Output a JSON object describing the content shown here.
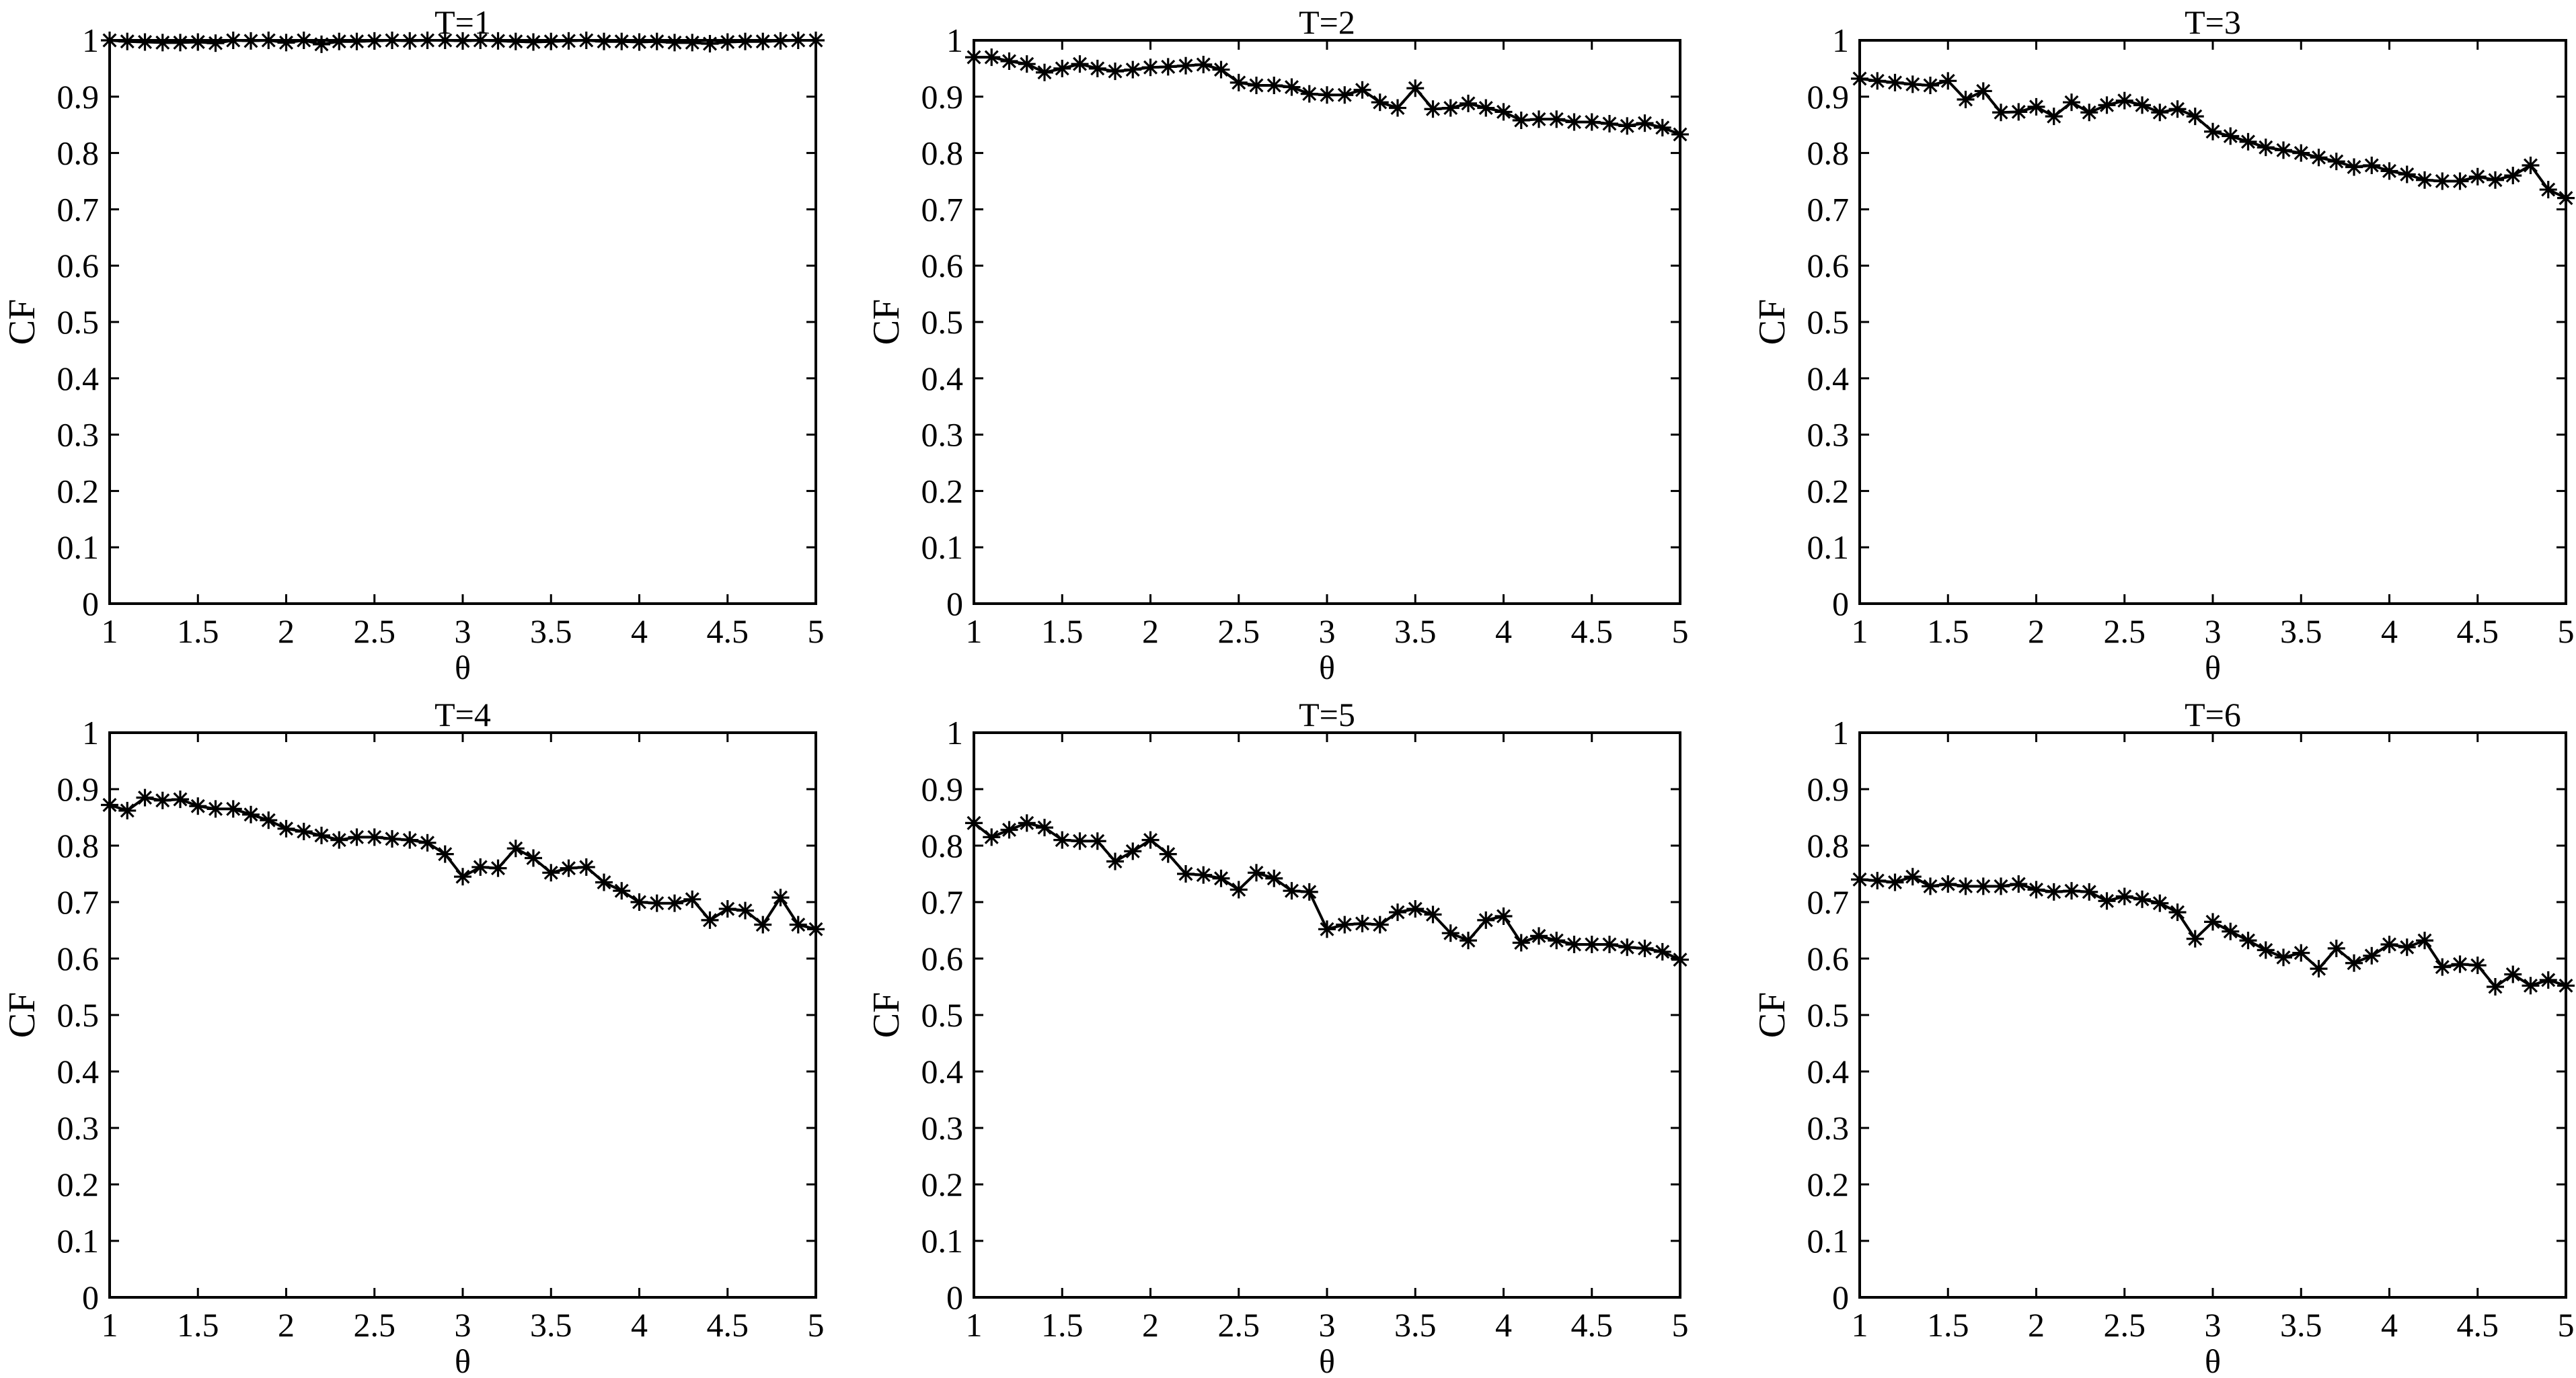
{
  "chart_data": [
    {
      "type": "line",
      "title": "T=1",
      "xlabel": "θ",
      "ylabel": "CF",
      "xlim": [
        1,
        5
      ],
      "ylim": [
        0,
        1
      ],
      "xticks": [
        "1",
        "1.5",
        "2",
        "2.5",
        "3",
        "3.5",
        "4",
        "4.5",
        "5"
      ],
      "yticks": [
        "0",
        "0.1",
        "0.2",
        "0.3",
        "0.4",
        "0.5",
        "0.6",
        "0.7",
        "0.8",
        "0.9",
        "1"
      ],
      "grid": false,
      "marker": "asterisk",
      "x": [
        1.0,
        1.1,
        1.2,
        1.3,
        1.4,
        1.5,
        1.6,
        1.7,
        1.8,
        1.9,
        2.0,
        2.1,
        2.2,
        2.3,
        2.4,
        2.5,
        2.6,
        2.7,
        2.8,
        2.9,
        3.0,
        3.1,
        3.2,
        3.3,
        3.4,
        3.5,
        3.6,
        3.7,
        3.8,
        3.9,
        4.0,
        4.1,
        4.2,
        4.3,
        4.4,
        4.5,
        4.6,
        4.7,
        4.8,
        4.9,
        5.0
      ],
      "values": [
        1.0,
        0.998,
        0.997,
        0.996,
        0.996,
        0.997,
        0.995,
        1.0,
        0.999,
        1.0,
        0.996,
        1.0,
        0.993,
        0.998,
        0.998,
        0.999,
        1.0,
        0.999,
        1.0,
        1.0,
        0.999,
        1.0,
        0.999,
        0.998,
        0.997,
        0.998,
        0.999,
        1.0,
        0.998,
        0.998,
        0.997,
        0.998,
        0.996,
        0.996,
        0.994,
        0.997,
        0.998,
        0.998,
        0.999,
        1.0,
        1.0
      ]
    },
    {
      "type": "line",
      "title": "T=2",
      "xlabel": "θ",
      "ylabel": "CF",
      "xlim": [
        1,
        5
      ],
      "ylim": [
        0,
        1
      ],
      "xticks": [
        "1",
        "1.5",
        "2",
        "2.5",
        "3",
        "3.5",
        "4",
        "4.5",
        "5"
      ],
      "yticks": [
        "0",
        "0.1",
        "0.2",
        "0.3",
        "0.4",
        "0.5",
        "0.6",
        "0.7",
        "0.8",
        "0.9",
        "1"
      ],
      "grid": false,
      "marker": "asterisk",
      "x": [
        1.0,
        1.1,
        1.2,
        1.3,
        1.4,
        1.5,
        1.6,
        1.7,
        1.8,
        1.9,
        2.0,
        2.1,
        2.2,
        2.3,
        2.4,
        2.5,
        2.6,
        2.7,
        2.8,
        2.9,
        3.0,
        3.1,
        3.2,
        3.3,
        3.4,
        3.5,
        3.6,
        3.7,
        3.8,
        3.9,
        4.0,
        4.1,
        4.2,
        4.3,
        4.4,
        4.5,
        4.6,
        4.7,
        4.8,
        4.9,
        5.0
      ],
      "values": [
        0.97,
        0.97,
        0.963,
        0.958,
        0.943,
        0.95,
        0.958,
        0.95,
        0.945,
        0.948,
        0.952,
        0.953,
        0.955,
        0.957,
        0.948,
        0.925,
        0.92,
        0.92,
        0.917,
        0.905,
        0.903,
        0.903,
        0.912,
        0.89,
        0.88,
        0.915,
        0.878,
        0.88,
        0.888,
        0.88,
        0.873,
        0.858,
        0.86,
        0.86,
        0.855,
        0.855,
        0.852,
        0.848,
        0.853,
        0.845,
        0.833
      ]
    },
    {
      "type": "line",
      "title": "T=3",
      "xlabel": "θ",
      "ylabel": "CF",
      "xlim": [
        1,
        5
      ],
      "ylim": [
        0,
        1
      ],
      "xticks": [
        "1",
        "1.5",
        "2",
        "2.5",
        "3",
        "3.5",
        "4",
        "4.5",
        "5"
      ],
      "yticks": [
        "0",
        "0.1",
        "0.2",
        "0.3",
        "0.4",
        "0.5",
        "0.6",
        "0.7",
        "0.8",
        "0.9",
        "1"
      ],
      "grid": false,
      "marker": "asterisk",
      "x": [
        1.0,
        1.1,
        1.2,
        1.3,
        1.4,
        1.5,
        1.6,
        1.7,
        1.8,
        1.9,
        2.0,
        2.1,
        2.2,
        2.3,
        2.4,
        2.5,
        2.6,
        2.7,
        2.8,
        2.9,
        3.0,
        3.1,
        3.2,
        3.3,
        3.4,
        3.5,
        3.6,
        3.7,
        3.8,
        3.9,
        4.0,
        4.1,
        4.2,
        4.3,
        4.4,
        4.5,
        4.6,
        4.7,
        4.8,
        4.9,
        5.0
      ],
      "values": [
        0.932,
        0.928,
        0.925,
        0.922,
        0.92,
        0.928,
        0.895,
        0.91,
        0.872,
        0.873,
        0.882,
        0.865,
        0.89,
        0.872,
        0.885,
        0.893,
        0.885,
        0.872,
        0.878,
        0.865,
        0.838,
        0.83,
        0.82,
        0.81,
        0.805,
        0.8,
        0.792,
        0.785,
        0.775,
        0.778,
        0.768,
        0.762,
        0.752,
        0.75,
        0.75,
        0.758,
        0.752,
        0.76,
        0.778,
        0.735,
        0.72
      ]
    },
    {
      "type": "line",
      "title": "T=4",
      "xlabel": "θ",
      "ylabel": "CF",
      "xlim": [
        1,
        5
      ],
      "ylim": [
        0,
        1
      ],
      "xticks": [
        "1",
        "1.5",
        "2",
        "2.5",
        "3",
        "3.5",
        "4",
        "4.5",
        "5"
      ],
      "yticks": [
        "0",
        "0.1",
        "0.2",
        "0.3",
        "0.4",
        "0.5",
        "0.6",
        "0.7",
        "0.8",
        "0.9",
        "1"
      ],
      "grid": false,
      "marker": "asterisk",
      "x": [
        1.0,
        1.1,
        1.2,
        1.3,
        1.4,
        1.5,
        1.6,
        1.7,
        1.8,
        1.9,
        2.0,
        2.1,
        2.2,
        2.3,
        2.4,
        2.5,
        2.6,
        2.7,
        2.8,
        2.9,
        3.0,
        3.1,
        3.2,
        3.3,
        3.4,
        3.5,
        3.6,
        3.7,
        3.8,
        3.9,
        4.0,
        4.1,
        4.2,
        4.3,
        4.4,
        4.5,
        4.6,
        4.7,
        4.8,
        4.9,
        5.0
      ],
      "values": [
        0.872,
        0.862,
        0.885,
        0.88,
        0.882,
        0.87,
        0.865,
        0.865,
        0.855,
        0.845,
        0.83,
        0.825,
        0.818,
        0.81,
        0.815,
        0.815,
        0.812,
        0.81,
        0.805,
        0.785,
        0.745,
        0.762,
        0.76,
        0.795,
        0.778,
        0.752,
        0.76,
        0.762,
        0.735,
        0.72,
        0.7,
        0.698,
        0.698,
        0.705,
        0.668,
        0.688,
        0.685,
        0.66,
        0.708,
        0.66,
        0.652
      ]
    },
    {
      "type": "line",
      "title": "T=5",
      "xlabel": "θ",
      "ylabel": "CF",
      "xlim": [
        1,
        5
      ],
      "ylim": [
        0,
        1
      ],
      "xticks": [
        "1",
        "1.5",
        "2",
        "2.5",
        "3",
        "3.5",
        "4",
        "4.5",
        "5"
      ],
      "yticks": [
        "0",
        "0.1",
        "0.2",
        "0.3",
        "0.4",
        "0.5",
        "0.6",
        "0.7",
        "0.8",
        "0.9",
        "1"
      ],
      "grid": false,
      "marker": "asterisk",
      "x": [
        1.0,
        1.1,
        1.2,
        1.3,
        1.4,
        1.5,
        1.6,
        1.7,
        1.8,
        1.9,
        2.0,
        2.1,
        2.2,
        2.3,
        2.4,
        2.5,
        2.6,
        2.7,
        2.8,
        2.9,
        3.0,
        3.1,
        3.2,
        3.3,
        3.4,
        3.5,
        3.6,
        3.7,
        3.8,
        3.9,
        4.0,
        4.1,
        4.2,
        4.3,
        4.4,
        4.5,
        4.6,
        4.7,
        4.8,
        4.9,
        5.0
      ],
      "values": [
        0.84,
        0.815,
        0.828,
        0.84,
        0.832,
        0.81,
        0.808,
        0.808,
        0.772,
        0.79,
        0.81,
        0.785,
        0.75,
        0.748,
        0.742,
        0.722,
        0.752,
        0.742,
        0.72,
        0.718,
        0.652,
        0.66,
        0.662,
        0.66,
        0.682,
        0.688,
        0.678,
        0.645,
        0.632,
        0.668,
        0.675,
        0.628,
        0.64,
        0.632,
        0.625,
        0.625,
        0.625,
        0.62,
        0.618,
        0.612,
        0.598
      ]
    },
    {
      "type": "line",
      "title": "T=6",
      "xlabel": "θ",
      "ylabel": "CF",
      "xlim": [
        1,
        5
      ],
      "ylim": [
        0,
        1
      ],
      "xticks": [
        "1",
        "1.5",
        "2",
        "2.5",
        "3",
        "3.5",
        "4",
        "4.5",
        "5"
      ],
      "yticks": [
        "0",
        "0.1",
        "0.2",
        "0.3",
        "0.4",
        "0.5",
        "0.6",
        "0.7",
        "0.8",
        "0.9",
        "1"
      ],
      "grid": false,
      "marker": "asterisk",
      "x": [
        1.0,
        1.1,
        1.2,
        1.3,
        1.4,
        1.5,
        1.6,
        1.7,
        1.8,
        1.9,
        2.0,
        2.1,
        2.2,
        2.3,
        2.4,
        2.5,
        2.6,
        2.7,
        2.8,
        2.9,
        3.0,
        3.1,
        3.2,
        3.3,
        3.4,
        3.5,
        3.6,
        3.7,
        3.8,
        3.9,
        4.0,
        4.1,
        4.2,
        4.3,
        4.4,
        4.5,
        4.6,
        4.7,
        4.8,
        4.9,
        5.0
      ],
      "values": [
        0.74,
        0.738,
        0.735,
        0.745,
        0.728,
        0.732,
        0.728,
        0.728,
        0.728,
        0.732,
        0.722,
        0.718,
        0.72,
        0.718,
        0.702,
        0.71,
        0.705,
        0.698,
        0.682,
        0.635,
        0.665,
        0.648,
        0.632,
        0.615,
        0.602,
        0.61,
        0.582,
        0.618,
        0.592,
        0.605,
        0.625,
        0.62,
        0.632,
        0.585,
        0.59,
        0.588,
        0.55,
        0.572,
        0.552,
        0.562,
        0.552
      ]
    }
  ]
}
